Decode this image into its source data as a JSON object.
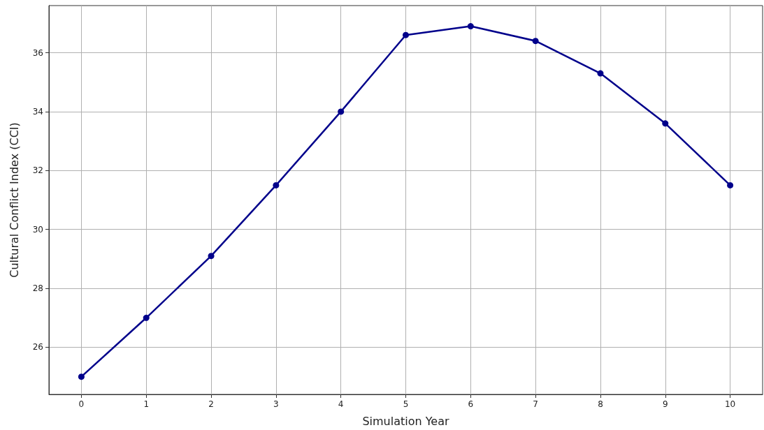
{
  "chart_data": {
    "type": "line",
    "xlabel": "Simulation Year",
    "ylabel": "Cultural Conflict Index (CCI)",
    "x": [
      0,
      1,
      2,
      3,
      4,
      5,
      6,
      7,
      8,
      9,
      10
    ],
    "series": [
      {
        "color": "#00008b",
        "values": [
          25.0,
          27.0,
          29.1,
          31.5,
          34.0,
          36.6,
          36.9,
          36.4,
          35.3,
          33.6,
          31.5
        ]
      }
    ],
    "xlim": [
      -0.5,
      10.5
    ],
    "xticks": [
      0,
      1,
      2,
      3,
      4,
      5,
      6,
      7,
      8,
      9,
      10
    ],
    "ylim": [
      24.4,
      37.6
    ],
    "yticks": [
      26,
      28,
      30,
      32,
      34,
      36
    ],
    "grid": true,
    "marker": "circle",
    "line_style": "solid"
  }
}
